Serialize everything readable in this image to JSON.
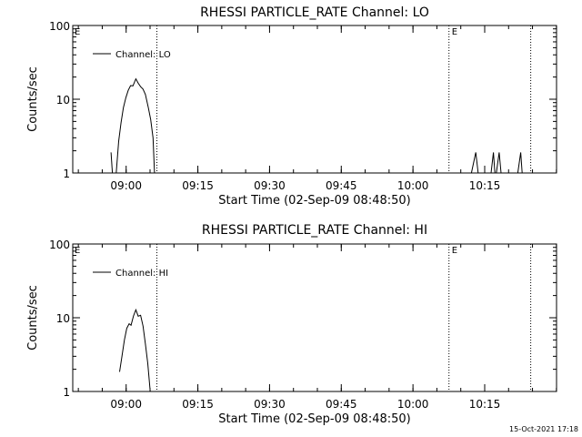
{
  "chart_data": [
    {
      "type": "line",
      "title": "RHESSI PARTICLE_RATE Channel: LO",
      "xlabel": "Start Time (02-Sep-09 08:48:50)",
      "ylabel": "Counts/sec",
      "x_unit": "minutes after 08:48:50",
      "xlim": [
        0,
        101.2
      ],
      "ylim": [
        1,
        100
      ],
      "yscale": "log",
      "grid": false,
      "legend_position": "top-left",
      "x_ticks": [
        {
          "label": "09:00",
          "value": 11.17
        },
        {
          "label": "09:15",
          "value": 26.17
        },
        {
          "label": "09:30",
          "value": 41.17
        },
        {
          "label": "09:45",
          "value": 56.17
        },
        {
          "label": "10:00",
          "value": 71.17
        },
        {
          "label": "10:15",
          "value": 86.17
        }
      ],
      "y_ticks": [
        {
          "label": "1",
          "value": 1
        },
        {
          "label": "10",
          "value": 10
        },
        {
          "label": "100",
          "value": 100
        }
      ],
      "series": [
        {
          "name": "Channel: LO",
          "segments": [
            [
              [
                8.0,
                1.9
              ],
              [
                8.3,
                1.0
              ]
            ],
            [
              [
                9.1,
                1.0
              ],
              [
                9.6,
                2.7
              ],
              [
                10.1,
                4.8
              ],
              [
                10.6,
                7.7
              ],
              [
                11.1,
                10.5
              ],
              [
                11.6,
                13.2
              ],
              [
                12.1,
                15.3
              ],
              [
                12.6,
                15.2
              ],
              [
                13.2,
                18.9
              ],
              [
                13.7,
                16.5
              ],
              [
                14.2,
                14.8
              ],
              [
                14.7,
                13.7
              ],
              [
                15.2,
                11.6
              ],
              [
                15.8,
                7.7
              ],
              [
                16.3,
                5.3
              ],
              [
                16.8,
                3.0
              ],
              [
                17.1,
                1.0
              ]
            ],
            [
              [
                83.4,
                1.0
              ],
              [
                84.3,
                1.9
              ],
              [
                84.8,
                1.0
              ]
            ],
            [
              [
                87.5,
                1.0
              ],
              [
                88.0,
                1.9
              ],
              [
                88.3,
                1.0
              ]
            ],
            [
              [
                88.6,
                1.0
              ],
              [
                89.2,
                1.9
              ],
              [
                89.6,
                1.0
              ]
            ],
            [
              [
                93.1,
                1.0
              ],
              [
                93.7,
                1.9
              ],
              [
                94.0,
                1.0
              ]
            ]
          ],
          "color": "#000000"
        }
      ],
      "vertical_lines": [
        {
          "x": 17.6,
          "style": "dotted"
        },
        {
          "x": 78.7,
          "style": "dotted",
          "label": "E"
        },
        {
          "x": 95.8,
          "style": "dotted"
        }
      ],
      "corner_label": "E"
    },
    {
      "type": "line",
      "title": "RHESSI PARTICLE_RATE Channel: HI",
      "xlabel": "Start Time (02-Sep-09 08:48:50)",
      "ylabel": "Counts/sec",
      "x_unit": "minutes after 08:48:50",
      "xlim": [
        0,
        101.2
      ],
      "ylim": [
        1,
        100
      ],
      "yscale": "log",
      "grid": false,
      "legend_position": "top-left",
      "x_ticks": [
        {
          "label": "09:00",
          "value": 11.17
        },
        {
          "label": "09:15",
          "value": 26.17
        },
        {
          "label": "09:30",
          "value": 41.17
        },
        {
          "label": "09:45",
          "value": 56.17
        },
        {
          "label": "10:00",
          "value": 71.17
        },
        {
          "label": "10:15",
          "value": 86.17
        }
      ],
      "y_ticks": [
        {
          "label": "1",
          "value": 1
        },
        {
          "label": "10",
          "value": 10
        },
        {
          "label": "100",
          "value": 100
        }
      ],
      "series": [
        {
          "name": "Channel: HI",
          "segments": [
            [
              [
                9.8,
                1.85
              ],
              [
                10.3,
                3.0
              ],
              [
                10.8,
                5.0
              ],
              [
                11.3,
                7.2
              ],
              [
                11.8,
                8.3
              ],
              [
                12.2,
                7.9
              ],
              [
                12.7,
                10.6
              ],
              [
                13.2,
                12.8
              ],
              [
                13.7,
                10.5
              ],
              [
                14.2,
                10.8
              ],
              [
                14.7,
                7.7
              ],
              [
                15.2,
                4.4
              ],
              [
                15.7,
                2.4
              ],
              [
                16.2,
                1.0
              ]
            ]
          ],
          "color": "#000000"
        }
      ],
      "vertical_lines": [
        {
          "x": 17.6,
          "style": "dotted"
        },
        {
          "x": 78.7,
          "style": "dotted",
          "label": "E"
        },
        {
          "x": 95.8,
          "style": "dotted"
        }
      ],
      "corner_label": "E"
    }
  ],
  "footer": {
    "timestamp": "15-Oct-2021 17:18"
  }
}
